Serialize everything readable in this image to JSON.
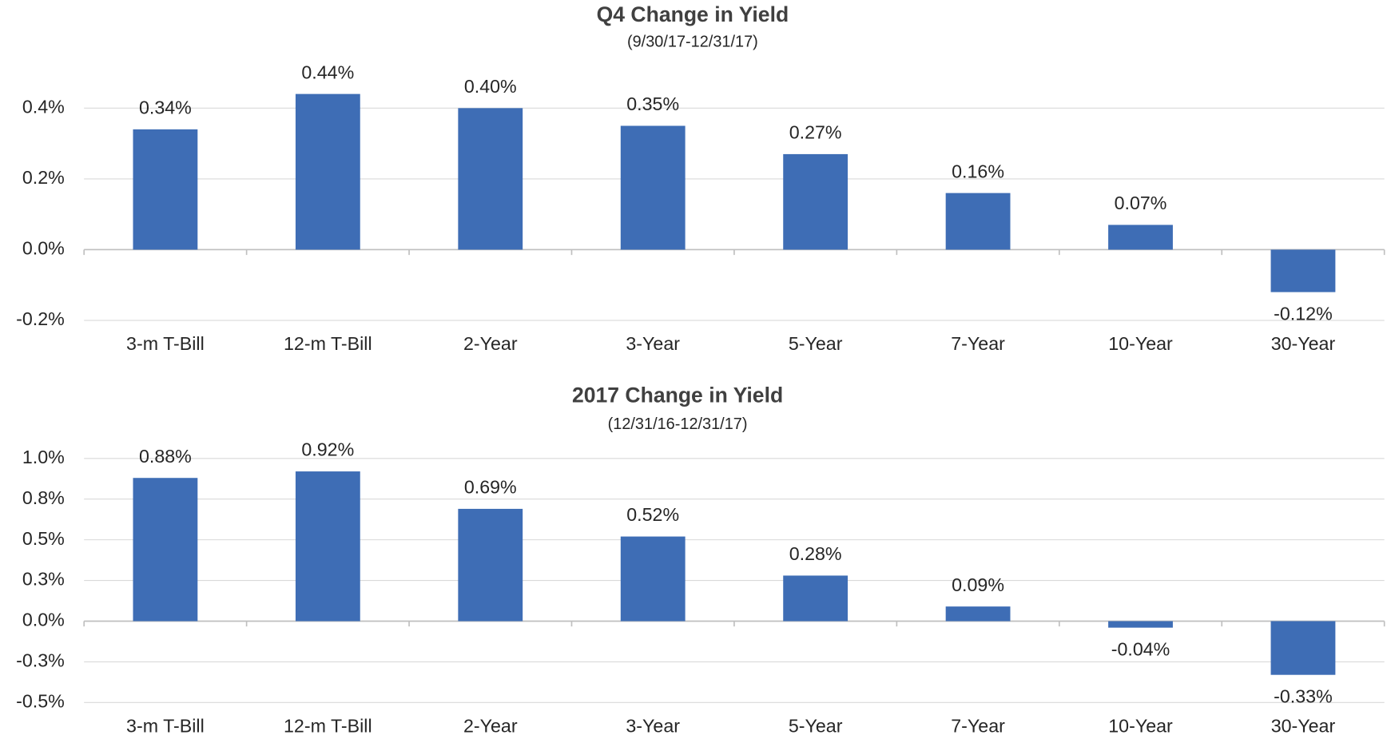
{
  "chart_data": [
    {
      "type": "bar",
      "title": "Q4 Change in Yield",
      "subtitle": "(9/30/17-12/31/17)",
      "categories": [
        "3-m T-Bill",
        "12-m T-Bill",
        "2-Year",
        "3-Year",
        "5-Year",
        "7-Year",
        "10-Year",
        "30-Year"
      ],
      "values": [
        0.34,
        0.44,
        0.4,
        0.35,
        0.27,
        0.16,
        0.07,
        -0.12
      ],
      "value_labels": [
        "0.34%",
        "0.44%",
        "0.40%",
        "0.35%",
        "0.27%",
        "0.16%",
        "0.07%",
        "-0.12%"
      ],
      "color": "#3e6db5",
      "ylim": [
        -0.2,
        0.45
      ],
      "yticks": [
        {
          "value": 0.4,
          "label": "0.4%"
        },
        {
          "value": 0.2,
          "label": "0.2%"
        },
        {
          "value": 0.0,
          "label": "0.0%"
        },
        {
          "value": -0.2,
          "label": "-0.2%"
        }
      ],
      "grid": true
    },
    {
      "type": "bar",
      "title": "2017 Change in Yield",
      "subtitle": "(12/31/16-12/31/17)",
      "categories": [
        "3-m T-Bill",
        "12-m T-Bill",
        "2-Year",
        "3-Year",
        "5-Year",
        "7-Year",
        "10-Year",
        "30-Year"
      ],
      "values": [
        0.88,
        0.92,
        0.69,
        0.52,
        0.28,
        0.09,
        -0.04,
        -0.33
      ],
      "value_labels": [
        "0.88%",
        "0.92%",
        "0.69%",
        "0.52%",
        "0.28%",
        "0.09%",
        "-0.04%",
        "-0.33%"
      ],
      "color": "#3e6db5",
      "ylim": [
        -0.5,
        1.0
      ],
      "yticks": [
        {
          "value": 1.0,
          "label": "1.0%"
        },
        {
          "value": 0.75,
          "label": "0.8%"
        },
        {
          "value": 0.5,
          "label": "0.5%"
        },
        {
          "value": 0.25,
          "label": "0.3%"
        },
        {
          "value": 0.0,
          "label": "0.0%"
        },
        {
          "value": -0.25,
          "label": "-0.3%"
        },
        {
          "value": -0.5,
          "label": "-0.5%"
        }
      ],
      "grid": true
    }
  ]
}
